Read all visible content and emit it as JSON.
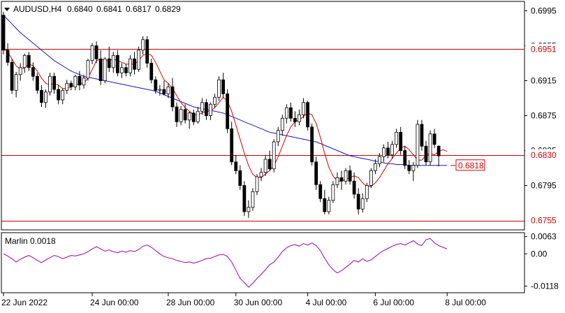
{
  "header": {
    "symbol": "AUDUSD,H4",
    "open": "0.6840",
    "high": "0.6841",
    "low": "0.6817",
    "close": "0.6829"
  },
  "colors": {
    "bull": "#ffffff",
    "bear": "#000000",
    "ma_red": "#e00000",
    "ma_blue": "#1515d0",
    "level_line": "#d00000",
    "marlin": "#a000a0",
    "grid": "#000000"
  },
  "chart_data": [
    {
      "type": "candlestick",
      "title": "AUDUSD,H4",
      "ylim": [
        0.6745,
        0.7005
      ],
      "y_ticks": [
        "0.6995",
        "0.6955",
        "0.6915",
        "0.6875",
        "0.6835",
        "0.6795"
      ],
      "x_ticks": [
        {
          "label": "22 Jun 2022",
          "index": 0
        },
        {
          "label": "24 Jun 00:00",
          "index": 21
        },
        {
          "label": "28 Jun 00:00",
          "index": 39
        },
        {
          "label": "30 Jun 00:00",
          "index": 55
        },
        {
          "label": "4 Jul 00:00",
          "index": 72
        },
        {
          "label": "6 Jul 00:00",
          "index": 88
        },
        {
          "label": "8 Jul 00:00",
          "index": 105
        }
      ],
      "levels": [
        {
          "label": "0.6951",
          "value": 0.6951
        },
        {
          "label": "0.6830",
          "value": 0.683
        },
        {
          "label": "0.6755",
          "value": 0.6755
        }
      ],
      "marker": {
        "label": "0.6818",
        "value": 0.6818
      },
      "candles": [
        [
          0.699,
          0.6994,
          0.6945,
          0.695
        ],
        [
          0.695,
          0.6958,
          0.6932,
          0.6936
        ],
        [
          0.6936,
          0.694,
          0.69,
          0.6904
        ],
        [
          0.6904,
          0.6925,
          0.6896,
          0.6922
        ],
        [
          0.6922,
          0.6935,
          0.6915,
          0.693
        ],
        [
          0.693,
          0.6946,
          0.6924,
          0.6944
        ],
        [
          0.6944,
          0.6948,
          0.6926,
          0.693
        ],
        [
          0.693,
          0.6936,
          0.6915,
          0.692
        ],
        [
          0.692,
          0.6924,
          0.69,
          0.6904
        ],
        [
          0.6904,
          0.691,
          0.6885,
          0.689
        ],
        [
          0.689,
          0.6905,
          0.6884,
          0.6902
        ],
        [
          0.6902,
          0.6924,
          0.6898,
          0.692
        ],
        [
          0.692,
          0.6924,
          0.69,
          0.6905
        ],
        [
          0.6905,
          0.691,
          0.6888,
          0.6893
        ],
        [
          0.6893,
          0.6906,
          0.6888,
          0.6904
        ],
        [
          0.6904,
          0.6916,
          0.69,
          0.6912
        ],
        [
          0.6912,
          0.6915,
          0.6904,
          0.6908
        ],
        [
          0.6908,
          0.6922,
          0.6904,
          0.692
        ],
        [
          0.692,
          0.6926,
          0.6904,
          0.691
        ],
        [
          0.691,
          0.6922,
          0.6906,
          0.6918
        ],
        [
          0.6918,
          0.694,
          0.6915,
          0.6938
        ],
        [
          0.6938,
          0.6958,
          0.6934,
          0.6955
        ],
        [
          0.6955,
          0.696,
          0.6935,
          0.694
        ],
        [
          0.694,
          0.695,
          0.691,
          0.6915
        ],
        [
          0.6915,
          0.6942,
          0.6912,
          0.694
        ],
        [
          0.694,
          0.6954,
          0.6925,
          0.693
        ],
        [
          0.693,
          0.6948,
          0.6924,
          0.6944
        ],
        [
          0.6944,
          0.695,
          0.692,
          0.6924
        ],
        [
          0.6924,
          0.6935,
          0.6918,
          0.693
        ],
        [
          0.693,
          0.6934,
          0.692,
          0.6924
        ],
        [
          0.6924,
          0.6944,
          0.692,
          0.694
        ],
        [
          0.694,
          0.6948,
          0.6922,
          0.6928
        ],
        [
          0.6928,
          0.6954,
          0.6925,
          0.695
        ],
        [
          0.695,
          0.6966,
          0.6945,
          0.6962
        ],
        [
          0.6962,
          0.6966,
          0.693,
          0.6935
        ],
        [
          0.6935,
          0.694,
          0.6912,
          0.6916
        ],
        [
          0.6916,
          0.692,
          0.69,
          0.6904
        ],
        [
          0.6904,
          0.691,
          0.6898,
          0.6905
        ],
        [
          0.6905,
          0.6915,
          0.6898,
          0.69
        ],
        [
          0.69,
          0.6912,
          0.6895,
          0.6908
        ],
        [
          0.6908,
          0.6918,
          0.688,
          0.6885
        ],
        [
          0.6885,
          0.689,
          0.6862,
          0.6868
        ],
        [
          0.6868,
          0.6886,
          0.6864,
          0.6882
        ],
        [
          0.6882,
          0.6888,
          0.6866,
          0.687
        ],
        [
          0.687,
          0.688,
          0.686,
          0.6878
        ],
        [
          0.6878,
          0.6882,
          0.6864,
          0.6868
        ],
        [
          0.6868,
          0.6885,
          0.6866,
          0.688
        ],
        [
          0.688,
          0.6895,
          0.6876,
          0.689
        ],
        [
          0.689,
          0.6894,
          0.687,
          0.6875
        ],
        [
          0.6875,
          0.689,
          0.687,
          0.6888
        ],
        [
          0.6888,
          0.69,
          0.6884,
          0.6896
        ],
        [
          0.6896,
          0.692,
          0.6892,
          0.6916
        ],
        [
          0.6916,
          0.6924,
          0.6895,
          0.69
        ],
        [
          0.69,
          0.6905,
          0.6855,
          0.686
        ],
        [
          0.686,
          0.6868,
          0.6818,
          0.6822
        ],
        [
          0.6822,
          0.683,
          0.6808,
          0.6812
        ],
        [
          0.6812,
          0.6818,
          0.679,
          0.6795
        ],
        [
          0.6795,
          0.68,
          0.676,
          0.6765
        ],
        [
          0.6765,
          0.6778,
          0.6758,
          0.677
        ],
        [
          0.677,
          0.6792,
          0.6766,
          0.6788
        ],
        [
          0.6788,
          0.6808,
          0.6784,
          0.6805
        ],
        [
          0.6805,
          0.6815,
          0.68,
          0.681
        ],
        [
          0.681,
          0.683,
          0.6806,
          0.6825
        ],
        [
          0.6825,
          0.6835,
          0.6812,
          0.6814
        ],
        [
          0.6814,
          0.6848,
          0.681,
          0.6845
        ],
        [
          0.6845,
          0.6862,
          0.684,
          0.6858
        ],
        [
          0.6858,
          0.6876,
          0.6852,
          0.6872
        ],
        [
          0.6872,
          0.6888,
          0.6866,
          0.6884
        ],
        [
          0.6884,
          0.689,
          0.6868,
          0.6872
        ],
        [
          0.6872,
          0.688,
          0.6862,
          0.6868
        ],
        [
          0.6868,
          0.6882,
          0.6864,
          0.6876
        ],
        [
          0.6876,
          0.6895,
          0.6872,
          0.689
        ],
        [
          0.689,
          0.6892,
          0.6858,
          0.6862
        ],
        [
          0.6862,
          0.6866,
          0.6818,
          0.6822
        ],
        [
          0.6822,
          0.6828,
          0.679,
          0.6796
        ],
        [
          0.6796,
          0.68,
          0.6776,
          0.678
        ],
        [
          0.678,
          0.679,
          0.6762,
          0.6765
        ],
        [
          0.6765,
          0.6782,
          0.6762,
          0.6778
        ],
        [
          0.6778,
          0.68,
          0.6775,
          0.6796
        ],
        [
          0.6796,
          0.681,
          0.6792,
          0.6804
        ],
        [
          0.6804,
          0.6812,
          0.679,
          0.68
        ],
        [
          0.68,
          0.6815,
          0.6796,
          0.6812
        ],
        [
          0.6812,
          0.6818,
          0.6796,
          0.68
        ],
        [
          0.68,
          0.681,
          0.678,
          0.6785
        ],
        [
          0.6785,
          0.6792,
          0.6762,
          0.6768
        ],
        [
          0.6768,
          0.6786,
          0.6764,
          0.678
        ],
        [
          0.678,
          0.6798,
          0.6776,
          0.6795
        ],
        [
          0.6795,
          0.6815,
          0.6792,
          0.6812
        ],
        [
          0.6812,
          0.6825,
          0.6808,
          0.682
        ],
        [
          0.682,
          0.6832,
          0.6816,
          0.6828
        ],
        [
          0.6828,
          0.6842,
          0.6822,
          0.6838
        ],
        [
          0.6838,
          0.6845,
          0.6826,
          0.683
        ],
        [
          0.683,
          0.6846,
          0.6826,
          0.6842
        ],
        [
          0.6842,
          0.686,
          0.6838,
          0.6856
        ],
        [
          0.6856,
          0.6862,
          0.683,
          0.6835
        ],
        [
          0.6835,
          0.684,
          0.6814,
          0.6818
        ],
        [
          0.6818,
          0.6824,
          0.6808,
          0.6812
        ],
        [
          0.6812,
          0.6822,
          0.68,
          0.6818
        ],
        [
          0.6818,
          0.687,
          0.6815,
          0.6865
        ],
        [
          0.6865,
          0.687,
          0.6835,
          0.684
        ],
        [
          0.684,
          0.6846,
          0.6818,
          0.6822
        ],
        [
          0.6822,
          0.6858,
          0.6818,
          0.6854
        ],
        [
          0.6854,
          0.686,
          0.6838,
          0.6842
        ],
        [
          0.684,
          0.6841,
          0.6817,
          0.6829
        ]
      ],
      "series": [
        {
          "values": [
            0.6952,
            0.6948,
            0.694,
            0.6932,
            0.6928,
            0.693,
            0.6934,
            0.6932,
            0.6926,
            0.6918,
            0.6912,
            0.691,
            0.6912,
            0.691,
            0.6906,
            0.6906,
            0.6908,
            0.691,
            0.6912,
            0.6912,
            0.6918,
            0.6928,
            0.6938,
            0.694,
            0.6938,
            0.6938,
            0.694,
            0.6938,
            0.6936,
            0.6934,
            0.6934,
            0.6934,
            0.6938,
            0.6944,
            0.6946,
            0.6944,
            0.6936,
            0.6926,
            0.6916,
            0.6912,
            0.6906,
            0.6898,
            0.689,
            0.6884,
            0.688,
            0.6876,
            0.6876,
            0.6878,
            0.688,
            0.688,
            0.6884,
            0.689,
            0.6896,
            0.6892,
            0.688,
            0.6864,
            0.6848,
            0.6832,
            0.6818,
            0.6808,
            0.6804,
            0.6804,
            0.6808,
            0.6812,
            0.6818,
            0.6828,
            0.684,
            0.6852,
            0.6862,
            0.6868,
            0.687,
            0.6874,
            0.6878,
            0.6876,
            0.6866,
            0.685,
            0.6832,
            0.6816,
            0.6806,
            0.68,
            0.68,
            0.6802,
            0.6804,
            0.6806,
            0.6804,
            0.6798,
            0.6794,
            0.6794,
            0.6798,
            0.6804,
            0.6812,
            0.682,
            0.6826,
            0.6832,
            0.6838,
            0.684,
            0.6836,
            0.683,
            0.6824,
            0.6824,
            0.683,
            0.6832,
            0.683,
            0.6834,
            0.6836,
            0.6834
          ]
        },
        {
          "values": [
            0.699,
            0.6985,
            0.698,
            0.6975,
            0.697,
            0.6966,
            0.6962,
            0.6958,
            0.6954,
            0.695,
            0.6946,
            0.6942,
            0.6938,
            0.6935,
            0.6932,
            0.6929,
            0.6926,
            0.6924,
            0.6922,
            0.692,
            0.6919,
            0.6918,
            0.6917,
            0.6916,
            0.6915,
            0.6914,
            0.6913,
            0.6912,
            0.6911,
            0.691,
            0.6909,
            0.6908,
            0.6907,
            0.6906,
            0.6905,
            0.6904,
            0.6903,
            0.6901,
            0.6899,
            0.6897,
            0.6895,
            0.6893,
            0.6891,
            0.6889,
            0.6887,
            0.6885,
            0.6884,
            0.6883,
            0.6882,
            0.6881,
            0.688,
            0.6879,
            0.6878,
            0.6876,
            0.6874,
            0.6872,
            0.687,
            0.6868,
            0.6866,
            0.6864,
            0.6862,
            0.686,
            0.6858,
            0.6856,
            0.6855,
            0.6854,
            0.6853,
            0.6852,
            0.6851,
            0.685,
            0.6849,
            0.6848,
            0.6847,
            0.6846,
            0.6845,
            0.6843,
            0.6841,
            0.6839,
            0.6837,
            0.6835,
            0.6833,
            0.6831,
            0.6829,
            0.6828,
            0.6827,
            0.6826,
            0.6825,
            0.6824,
            0.6823,
            0.6822,
            0.6821,
            0.682,
            0.682,
            0.6819,
            0.6819,
            0.6819,
            0.6818,
            0.6818,
            0.6818,
            0.6818,
            0.6818,
            0.6818,
            0.6818,
            0.6818,
            0.6818,
            0.6818
          ]
        }
      ]
    },
    {
      "type": "line",
      "title": "Marlin 0.0018",
      "ylim": [
        -0.014,
        0.0075
      ],
      "y_ticks": [
        "0.0063",
        "0.00",
        "-0.0118"
      ],
      "series": [
        {
          "values": [
            0.0,
            -0.0008,
            -0.0018,
            -0.003,
            -0.002,
            -0.0012,
            -0.0006,
            -0.0014,
            -0.0024,
            -0.0032,
            -0.0022,
            -0.0014,
            -0.0006,
            -0.001,
            -0.0018,
            -0.0012,
            -0.0006,
            -0.0008,
            -0.0004,
            0.0,
            0.0008,
            0.0018,
            0.0026,
            0.0018,
            0.001,
            0.0014,
            0.0008,
            0.0004,
            0.001,
            0.0006,
            0.0012,
            0.0008,
            0.0016,
            0.0028,
            0.0032,
            0.0024,
            0.0012,
            0.0,
            -0.001,
            -0.0014,
            -0.0018,
            -0.0024,
            -0.0028,
            -0.0032,
            -0.003,
            -0.0034,
            -0.003,
            -0.0024,
            -0.0018,
            -0.0016,
            -0.001,
            -0.0004,
            -0.0002,
            -0.001,
            -0.003,
            -0.006,
            -0.009,
            -0.0105,
            -0.0122,
            -0.0108,
            -0.009,
            -0.0075,
            -0.0058,
            -0.004,
            -0.003,
            -0.0012,
            0.0008,
            0.0022,
            0.003,
            0.0034,
            0.0028,
            0.0038,
            0.0032,
            0.004,
            0.003,
            0.0012,
            -0.0016,
            -0.004,
            -0.0058,
            -0.007,
            -0.0062,
            -0.005,
            -0.0038,
            -0.0024,
            -0.003,
            -0.0018,
            -0.0028,
            -0.0022,
            -0.001,
            0.0002,
            0.0012,
            0.002,
            0.0028,
            0.0034,
            0.0038,
            0.0032,
            0.004,
            0.0048,
            0.0036,
            0.003,
            0.0052,
            0.0056,
            0.004,
            0.003,
            0.0024,
            0.0018
          ]
        }
      ]
    }
  ]
}
